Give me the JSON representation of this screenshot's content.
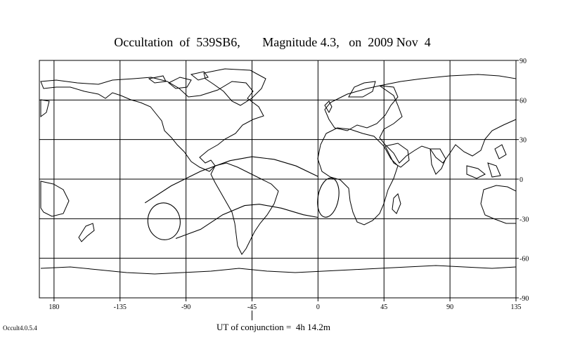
{
  "title": {
    "object": "Occultation  of  539SB6,",
    "magnitude": "Magnitude 4.3,",
    "date": "on  2009 Nov  4"
  },
  "version": "Occult4.0.5.4",
  "conjunction": {
    "label": "UT of conjunction =",
    "value": "4h 14.2m",
    "longitude": -45
  },
  "axes": {
    "longitude_ticks": [
      "180",
      "-135",
      "-90",
      "-45",
      "0",
      "45",
      "90",
      "135"
    ],
    "latitude_ticks": [
      "90",
      "60",
      "30",
      "0",
      "-30",
      "-60",
      "-90"
    ]
  },
  "map": {
    "projection": "equirectangular",
    "lon_range": [
      -190,
      135
    ],
    "lat_range": [
      -90,
      90
    ],
    "gridlines": true
  },
  "occultation_path": {
    "north_limit": [
      [
        -118,
        -18
      ],
      [
        -100,
        -5
      ],
      [
        -80,
        6
      ],
      [
        -60,
        14
      ],
      [
        -45,
        17
      ],
      [
        -30,
        15
      ],
      [
        -15,
        10
      ],
      [
        0,
        2
      ]
    ],
    "south_limit": [
      [
        -97,
        -45
      ],
      [
        -80,
        -38
      ],
      [
        -65,
        -27
      ],
      [
        -50,
        -20
      ],
      [
        -40,
        -19
      ],
      [
        -25,
        -22
      ],
      [
        -10,
        -27
      ],
      [
        0,
        -29
      ]
    ],
    "west_end": {
      "lon": -105,
      "lat": -32,
      "rlon": 11,
      "rlat": 14,
      "rot": -8
    },
    "east_end": {
      "lon": 7,
      "lat": -14,
      "rlon": 7,
      "rlat": 15,
      "rot": 10
    }
  }
}
